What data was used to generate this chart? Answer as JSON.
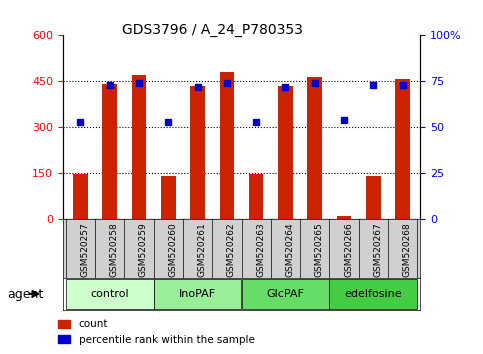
{
  "title": "GDS3796 / A_24_P780353",
  "samples": [
    "GSM520257",
    "GSM520258",
    "GSM520259",
    "GSM520260",
    "GSM520261",
    "GSM520262",
    "GSM520263",
    "GSM520264",
    "GSM520265",
    "GSM520266",
    "GSM520267",
    "GSM520268"
  ],
  "counts": [
    148,
    440,
    470,
    143,
    435,
    480,
    148,
    435,
    465,
    10,
    143,
    458
  ],
  "percentile_ranks": [
    53,
    73,
    74,
    53,
    72,
    74,
    53,
    72,
    74,
    54,
    73,
    73
  ],
  "groups": [
    {
      "label": "control",
      "start": 0,
      "end": 3,
      "color": "#ccffcc"
    },
    {
      "label": "InoPAF",
      "start": 3,
      "end": 6,
      "color": "#99ee99"
    },
    {
      "label": "GlcPAF",
      "start": 6,
      "end": 9,
      "color": "#66dd66"
    },
    {
      "label": "edelfosine",
      "start": 9,
      "end": 12,
      "color": "#44cc44"
    }
  ],
  "bar_color": "#cc2200",
  "dot_color": "#0000cc",
  "ylim_left": [
    0,
    600
  ],
  "ylim_right": [
    0,
    100
  ],
  "yticks_left": [
    0,
    150,
    300,
    450,
    600
  ],
  "yticks_right": [
    0,
    25,
    50,
    75,
    100
  ],
  "ytick_labels_right": [
    "0",
    "25",
    "50",
    "75",
    "100%"
  ],
  "grid_lines": [
    150,
    300,
    450
  ],
  "bar_width": 0.5,
  "legend_count_label": "count",
  "legend_pct_label": "percentile rank within the sample",
  "agent_label": "agent"
}
